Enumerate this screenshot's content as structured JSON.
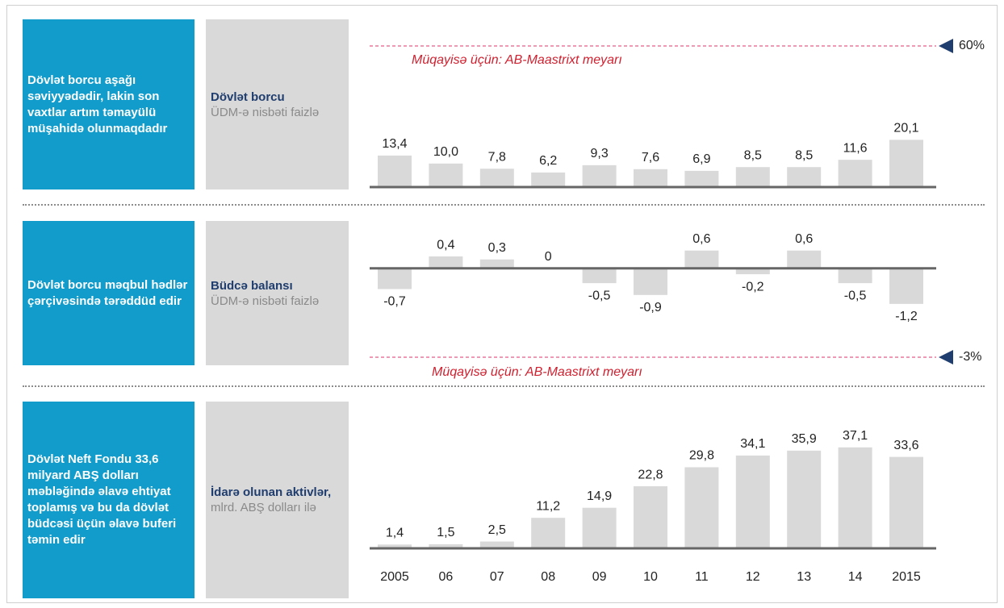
{
  "chart_data": [
    {
      "type": "bar",
      "note": "Dövlət borcu aşağı səviyyədədir, lakin son vaxtlar artım təmayülü müşahidə olunmaqdadır",
      "title": "Dövlət borcu",
      "subtitle": "ÜDM-ə nisbəti faizlə",
      "values": [
        13.4,
        10.0,
        7.8,
        6.2,
        9.3,
        7.6,
        6.9,
        8.5,
        8.5,
        11.6,
        20.1
      ],
      "value_labels": [
        "13,4",
        "10,0",
        "7,8",
        "6,2",
        "9,3",
        "7,6",
        "6,9",
        "8,5",
        "8,5",
        "11,6",
        "20,1"
      ],
      "color": "#d9d9d9",
      "ylim": [
        0,
        60
      ],
      "reference": {
        "value": 60,
        "label": "60%",
        "text": "Müqayisə üçün: AB-Maastrixt meyarı"
      }
    },
    {
      "type": "bar",
      "note": "Dövlət borcu məqbul hədlər çərçivəsində tərəddüd edir",
      "title": "Büdcə balansı",
      "subtitle": "ÜDM-ə nisbəti faizlə",
      "values": [
        -0.7,
        0.4,
        0.3,
        0,
        -0.5,
        -0.9,
        0.6,
        -0.2,
        0.6,
        -0.5,
        -1.2
      ],
      "value_labels": [
        "-0,7",
        "0,4",
        "0,3",
        "0",
        "-0,5",
        "-0,9",
        "0,6",
        "-0,2",
        "0,6",
        "-0,5",
        "-1,2"
      ],
      "color": "#d9d9d9",
      "ylim": [
        -3,
        1
      ],
      "reference": {
        "value": -3,
        "label": "-3%",
        "text": "Müqayisə üçün: AB-Maastrixt meyarı"
      }
    },
    {
      "type": "bar",
      "note": "Dövlət Neft Fondu 33,6 milyard ABŞ dolları məbləğində əlavə ehtiyat toplamış və bu da dövlət büdcəsi üçün əlavə buferi təmin edir",
      "title": "İdarə olunan aktivlər,",
      "subtitle": "mlrd. ABŞ dolları ilə",
      "categories": [
        "2005",
        "06",
        "07",
        "08",
        "09",
        "10",
        "11",
        "12",
        "13",
        "14",
        "2015"
      ],
      "values": [
        1.4,
        1.5,
        2.5,
        11.2,
        14.9,
        22.8,
        29.8,
        34.1,
        35.9,
        37.1,
        33.6
      ],
      "value_labels": [
        "1,4",
        "1,5",
        "2,5",
        "11,2",
        "14,9",
        "22,8",
        "29,8",
        "34,1",
        "35,9",
        "37,1",
        "33,6"
      ],
      "color": "#d9d9d9",
      "ylim": [
        0,
        40
      ]
    }
  ]
}
